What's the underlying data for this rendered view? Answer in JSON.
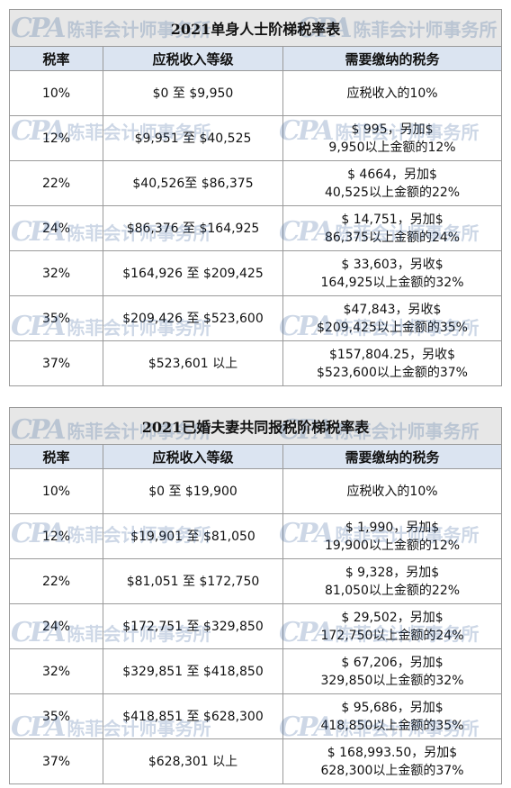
{
  "watermark": {
    "mark": "CPA",
    "text": "陈菲会计师事务所"
  },
  "headers": {
    "rate": "税率",
    "bracket": "应税收入等级",
    "tax": "需要缴纳的税务"
  },
  "tables": [
    {
      "title": "2021单身人士阶梯税率表",
      "rows": [
        {
          "rate": "10%",
          "bracket": "$0 至 $9,950",
          "tax1": "应税收入的10%",
          "tax2": ""
        },
        {
          "rate": "12%",
          "bracket": "$9,951 至 $40,525",
          "tax1": "$ 995，另加$",
          "tax2": "9,950以上金额的12%"
        },
        {
          "rate": "22%",
          "bracket": "$40,526至 $86,375",
          "tax1": "$ 4664，另加$",
          "tax2": "40,525以上金额的22%"
        },
        {
          "rate": "24%",
          "bracket": "$86,376 至 $164,925",
          "tax1": "$ 14,751，另加$",
          "tax2": "86,375以上金额的24%"
        },
        {
          "rate": "32%",
          "bracket": "$164,926 至 $209,425",
          "tax1": "$ 33,603，另收$",
          "tax2": "164,925以上金额的32%"
        },
        {
          "rate": "35%",
          "bracket": "$209,426 至 $523,600",
          "tax1": "$47,843，另收$",
          "tax2": "$209,425以上金额的35%"
        },
        {
          "rate": "37%",
          "bracket": "$523,601 以上",
          "tax1": "$157,804.25，另收$",
          "tax2": "$523,600以上金额的37%"
        }
      ]
    },
    {
      "title": "2021已婚夫妻共同报税阶梯税率表",
      "rows": [
        {
          "rate": "10%",
          "bracket": "$0 至 $19,900",
          "tax1": "应税收入的10%",
          "tax2": ""
        },
        {
          "rate": "12%",
          "bracket": "$19,901 至 $81,050",
          "tax1": "$ 1,990，另加$",
          "tax2": "19,900以上金额的12%"
        },
        {
          "rate": "22%",
          "bracket": "$81,051 至 $172,750",
          "tax1": "$ 9,328，另加$",
          "tax2": "81,050以上金额的22%"
        },
        {
          "rate": "24%",
          "bracket": "$172,751 至 $329,850",
          "tax1": "$ 29,502，另加$",
          "tax2": "172,750以上金额的24%"
        },
        {
          "rate": "32%",
          "bracket": "$329,851 至 $418,850",
          "tax1": "$ 67,206，另加$",
          "tax2": "329,850以上金额的32%"
        },
        {
          "rate": "35%",
          "bracket": "$418,851 至 $628,300",
          "tax1": "$ 95,686，另加$",
          "tax2": "418,850以上金额的35%"
        },
        {
          "rate": "37%",
          "bracket": "$628,301 以上",
          "tax1": "$ 168,993.50，另加$",
          "tax2": "628,300以上金额的37%"
        }
      ]
    }
  ]
}
